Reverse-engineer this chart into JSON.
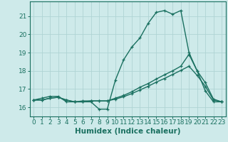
{
  "title": "",
  "xlabel": "Humidex (Indice chaleur)",
  "background_color": "#ceeaea",
  "grid_color": "#afd4d4",
  "line_color": "#1a7060",
  "x_values": [
    0,
    1,
    2,
    3,
    4,
    5,
    6,
    7,
    8,
    9,
    10,
    11,
    12,
    13,
    14,
    15,
    16,
    17,
    18,
    19,
    20,
    21,
    22,
    23
  ],
  "line1_y": [
    16.4,
    16.5,
    16.6,
    16.6,
    16.3,
    16.3,
    16.3,
    16.3,
    15.9,
    15.9,
    17.5,
    18.6,
    19.3,
    19.8,
    20.6,
    21.2,
    21.3,
    21.1,
    21.3,
    19.0,
    18.0,
    16.9,
    16.3,
    16.3
  ],
  "line2_y": [
    16.4,
    16.4,
    16.5,
    16.55,
    16.4,
    16.3,
    16.35,
    16.35,
    16.35,
    16.35,
    16.5,
    16.65,
    16.85,
    17.1,
    17.3,
    17.55,
    17.78,
    18.0,
    18.25,
    18.9,
    18.0,
    17.35,
    16.45,
    16.3
  ],
  "line3_y": [
    16.4,
    16.4,
    16.5,
    16.55,
    16.4,
    16.3,
    16.3,
    16.35,
    16.35,
    16.35,
    16.45,
    16.58,
    16.75,
    16.95,
    17.15,
    17.38,
    17.58,
    17.8,
    18.02,
    18.25,
    17.75,
    17.15,
    16.4,
    16.3
  ],
  "ylim": [
    15.5,
    21.8
  ],
  "yticks": [
    16,
    17,
    18,
    19,
    20,
    21
  ],
  "xlim": [
    -0.5,
    23.5
  ],
  "tick_fontsize": 6.5,
  "label_fontsize": 7.5
}
